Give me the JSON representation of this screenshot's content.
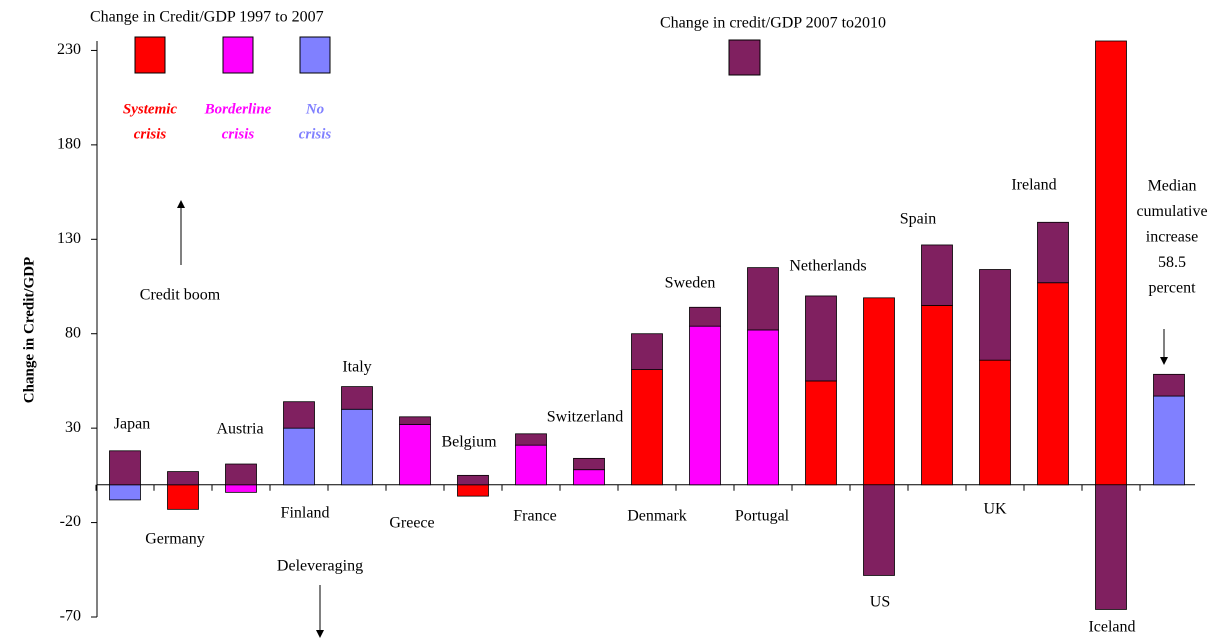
{
  "chart_data": {
    "type": "stacked-bar",
    "y_label": "Change in Credit/GDP",
    "categories": [
      "Japan",
      "Germany",
      "Austria",
      "Finland",
      "Italy",
      "Greece",
      "Belgium",
      "France",
      "Switzerland",
      "Denmark",
      "Sweden",
      "Portugal",
      "Netherlands",
      "US",
      "Spain",
      "UK",
      "Ireland",
      "Iceland",
      null
    ],
    "series": [
      {
        "name": "Change in Credit/GDP 1997 to 2007",
        "colors": [
          "#8080ff",
          "#ff0000",
          "#ff00ff",
          "#8080ff",
          "#8080ff",
          "#ff00ff",
          "#ff0000",
          "#ff00ff",
          "#ff00ff",
          "#ff0000",
          "#ff00ff",
          "#ff00ff",
          "#ff0000",
          "#ff0000",
          "#ff0000",
          "#ff0000",
          "#ff0000",
          "#ff0000",
          "#8080ff"
        ],
        "values": [
          -8,
          -13,
          -4,
          30,
          40,
          32,
          -6,
          21,
          8,
          61,
          84,
          82,
          55,
          99,
          95,
          66,
          107,
          235,
          47
        ]
      },
      {
        "name": "Change in credit/GDP 2007 to2010",
        "color": "#802060",
        "values": [
          18,
          7,
          11,
          14,
          12,
          4,
          5,
          6,
          6,
          19,
          10,
          33,
          45,
          -48,
          32,
          48,
          32,
          -66,
          11.5
        ]
      }
    ],
    "crisis_legend": [
      {
        "lines": [
          "Systemic",
          "crisis"
        ],
        "color": "#ff0000"
      },
      {
        "lines": [
          "Borderline",
          "crisis"
        ],
        "color": "#ff00ff"
      },
      {
        "lines": [
          "No",
          "crisis"
        ],
        "color": "#8080ff"
      }
    ],
    "annotations": {
      "up": "Credit boom",
      "down": "Deleveraging",
      "median": [
        "Median",
        "cumulative",
        "increase",
        "58.5",
        "percent"
      ]
    },
    "ylim": [
      -70,
      235
    ],
    "yticks": [
      -70,
      -20,
      30,
      80,
      130,
      180,
      230
    ]
  }
}
